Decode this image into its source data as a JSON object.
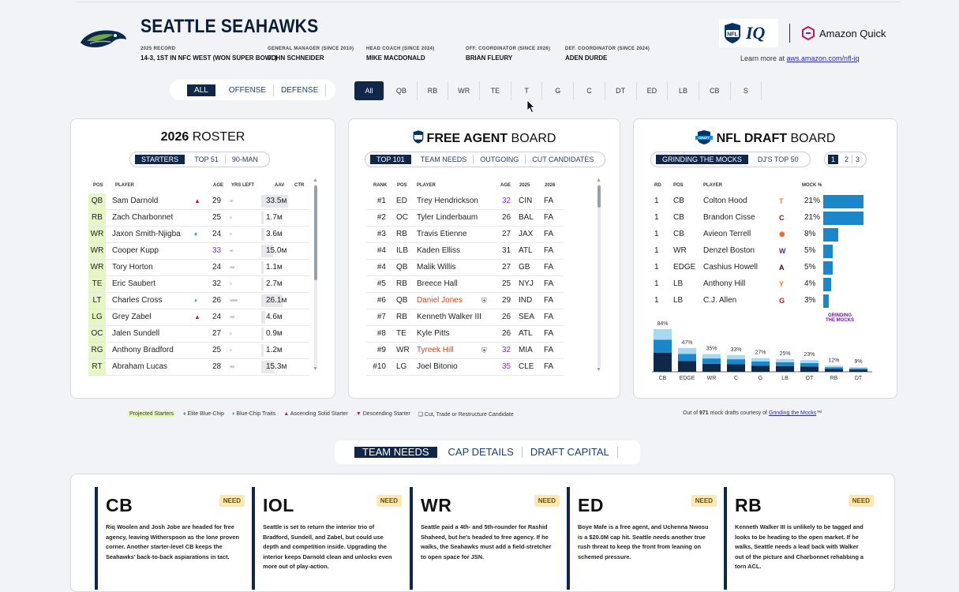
{
  "header": {
    "team_name": "SEATTLE SEAHAWKS",
    "meta": [
      {
        "key": "2025 RECORD",
        "value": "14-3, 1ST IN NFC WEST (WON SUPER BOWL)"
      },
      {
        "key": "GENERAL MANAGER (SINCE 2010)",
        "value": "JOHN SCHNEIDER"
      },
      {
        "key": "HEAD COACH (SINCE 2024)",
        "value": "MIKE MACDONALD"
      },
      {
        "key": "OFF. COORDINATOR (SINCE 2026)",
        "value": "BRIAN FLEURY"
      },
      {
        "key": "DEF. COORDINATOR (SINCE 2024)",
        "value": "ADEN DURDE"
      }
    ],
    "brand_nfl_iq": "IQ",
    "brand_amazon": "Amazon Quick",
    "learn_prefix": "Learn more at ",
    "learn_link": "aws.amazon.com/nfl-iq"
  },
  "unit_filter": [
    "ALL",
    "OFFENSE",
    "DEFENSE"
  ],
  "position_filter": [
    "All",
    "QB",
    "RB",
    "WR",
    "TE",
    "T",
    "G",
    "C",
    "DT",
    "ED",
    "LB",
    "CB",
    "S"
  ],
  "roster": {
    "title_year": "2026",
    "title_word": "ROSTER",
    "tabs": [
      "STARTERS",
      "TOP 51",
      "90-MAN"
    ],
    "columns": [
      "POS",
      "PLAYER",
      "AGE",
      "YRS LEFT",
      "AAV",
      "CTR"
    ],
    "rows": [
      {
        "pos": "QB",
        "player": "Sam Darnold",
        "mark": "▲",
        "mark_color": "#c2185b",
        "age": "29",
        "yrs": "◦◦",
        "aav": "33.5м",
        "aav_pct": 1.0,
        "age_color": "#222"
      },
      {
        "pos": "RB",
        "player": "Zach Charbonnet",
        "mark": "",
        "mark_color": "",
        "age": "25",
        "yrs": "◦",
        "aav": "1.7м",
        "aav_pct": 0.05,
        "age_color": "#222"
      },
      {
        "pos": "WR",
        "player": "Jaxon Smith-Njigba",
        "mark": "♦",
        "mark_color": "#3a8fd8",
        "age": "24",
        "yrs": "◦",
        "aav": "3.6м",
        "aav_pct": 0.11,
        "age_color": "#222"
      },
      {
        "pos": "WR",
        "player": "Cooper Kupp",
        "mark": "",
        "mark_color": "",
        "age": "33",
        "yrs": "◦◦",
        "aav": "15.0м",
        "aav_pct": 0.45,
        "age_color": "#8a2be2"
      },
      {
        "pos": "WR",
        "player": "Tory Horton",
        "mark": "",
        "mark_color": "",
        "age": "24",
        "yrs": "◦◦◦",
        "aav": "1.1м",
        "aav_pct": 0.03,
        "age_color": "#222"
      },
      {
        "pos": "TE",
        "player": "Eric Saubert",
        "mark": "",
        "mark_color": "",
        "age": "32",
        "yrs": "◦",
        "aav": "2.7м",
        "aav_pct": 0.08,
        "age_color": "#222"
      },
      {
        "pos": "LT",
        "player": "Charles Cross",
        "mark": "♦",
        "mark_color": "#5aaaf0",
        "age": "26",
        "yrs": "◦◦◦◦◦",
        "aav": "26.1м",
        "aav_pct": 0.78,
        "age_color": "#222"
      },
      {
        "pos": "LG",
        "player": "Grey Zabel",
        "mark": "▲",
        "mark_color": "#c2185b",
        "age": "24",
        "yrs": "◦◦◦",
        "aav": "4.6м",
        "aav_pct": 0.14,
        "age_color": "#222"
      },
      {
        "pos": "OC",
        "player": "Jalen Sundell",
        "mark": "",
        "mark_color": "",
        "age": "27",
        "yrs": "◦",
        "aav": "0.9м",
        "aav_pct": 0.03,
        "age_color": "#222"
      },
      {
        "pos": "RG",
        "player": "Anthony Bradford",
        "mark": "",
        "mark_color": "",
        "age": "25",
        "yrs": "◦",
        "aav": "1.2м",
        "aav_pct": 0.04,
        "age_color": "#222"
      },
      {
        "pos": "RT",
        "player": "Abraham Lucas",
        "mark": "",
        "mark_color": "",
        "age": "28",
        "yrs": "◦◦◦",
        "aav": "15.3м",
        "aav_pct": 0.46,
        "age_color": "#222"
      }
    ]
  },
  "free_agents": {
    "title_bold": "FREE AGENT",
    "title_word": "BOARD",
    "tabs": [
      "TOP 101",
      "TEAM NEEDS",
      "OUTGOING",
      "CUT CANDIDATES"
    ],
    "columns": [
      "RANK",
      "POS",
      "PLAYER",
      "AGE",
      "2025",
      "2026"
    ],
    "rows": [
      {
        "rank": "#1",
        "pos": "ED",
        "player": "Trey Hendrickson",
        "flag": "",
        "age": "32",
        "t25": "CIN",
        "t26": "FA",
        "player_color": "#222",
        "age_color": "#8a2be2"
      },
      {
        "rank": "#2",
        "pos": "OC",
        "player": "Tyler Linderbaum",
        "flag": "",
        "age": "26",
        "t25": "BAL",
        "t26": "FA",
        "player_color": "#222",
        "age_color": "#222"
      },
      {
        "rank": "#3",
        "pos": "RB",
        "player": "Travis Etienne",
        "flag": "",
        "age": "27",
        "t25": "JAX",
        "t26": "FA",
        "player_color": "#222",
        "age_color": "#222"
      },
      {
        "rank": "#4",
        "pos": "ILB",
        "player": "Kaden Elliss",
        "flag": "",
        "age": "31",
        "t25": "ATL",
        "t26": "FA",
        "player_color": "#222",
        "age_color": "#222"
      },
      {
        "rank": "#4",
        "pos": "QB",
        "player": "Malik Willis",
        "flag": "",
        "age": "27",
        "t25": "GB",
        "t26": "FA",
        "player_color": "#222",
        "age_color": "#222"
      },
      {
        "rank": "#5",
        "pos": "RB",
        "player": "Breece Hall",
        "flag": "",
        "age": "25",
        "t25": "NYJ",
        "t26": "FA",
        "player_color": "#222",
        "age_color": "#222"
      },
      {
        "rank": "#6",
        "pos": "QB",
        "player": "Daniel Jones",
        "flag": "⛨",
        "age": "29",
        "t25": "IND",
        "t26": "FA",
        "player_color": "#d84315",
        "age_color": "#222"
      },
      {
        "rank": "#7",
        "pos": "RB",
        "player": "Kenneth Walker III",
        "flag": "",
        "age": "26",
        "t25": "SEA",
        "t26": "FA",
        "player_color": "#222",
        "age_color": "#222"
      },
      {
        "rank": "#8",
        "pos": "TE",
        "player": "Kyle Pitts",
        "flag": "",
        "age": "26",
        "t25": "ATL",
        "t26": "FA",
        "player_color": "#222",
        "age_color": "#222"
      },
      {
        "rank": "#9",
        "pos": "WR",
        "player": "Tyreek Hill",
        "flag": "⛨",
        "age": "32",
        "t25": "MIA",
        "t26": "FA",
        "player_color": "#d84315",
        "age_color": "#8a2be2"
      },
      {
        "rank": "#10",
        "pos": "LG",
        "player": "Joel Bitonio",
        "flag": "",
        "age": "35",
        "t25": "CLE",
        "t26": "FA",
        "player_color": "#222",
        "age_color": "#8a2be2"
      }
    ]
  },
  "draft": {
    "title_bold": "NFL DRAFT",
    "title_word": "BOARD",
    "tabs": [
      "GRINDING THE MOCKS",
      "DJ'S TOP 50"
    ],
    "pages": [
      "1",
      "2",
      "3"
    ],
    "columns": [
      "RD",
      "POS",
      "PLAYER",
      "MOCK %"
    ],
    "rows": [
      {
        "rd": "1",
        "pos": "CB",
        "player": "Colton Hood",
        "school_icon": "T",
        "school_color": "#f57c00",
        "pct": "21%",
        "value": 21
      },
      {
        "rd": "1",
        "pos": "CB",
        "player": "Brandon Cisse",
        "school_icon": "C",
        "school_color": "#7b1e1e",
        "pct": "21%",
        "value": 21
      },
      {
        "rd": "1",
        "pos": "CB",
        "player": "Avieon Terrell",
        "school_icon": "✺",
        "school_color": "#f26522",
        "pct": "8%",
        "value": 8
      },
      {
        "rd": "1",
        "pos": "WR",
        "player": "Denzel Boston",
        "school_icon": "W",
        "school_color": "#4b2e83",
        "pct": "5%",
        "value": 5
      },
      {
        "rd": "1",
        "pos": "EDGE",
        "player": "Cashius Howell",
        "school_icon": "A",
        "school_color": "#500000",
        "pct": "5%",
        "value": 5
      },
      {
        "rd": "1",
        "pos": "LB",
        "player": "Anthony Hill",
        "school_icon": "Y",
        "school_color": "#f57c00",
        "pct": "4%",
        "value": 4
      },
      {
        "rd": "1",
        "pos": "LB",
        "player": "C.J. Allen",
        "school_icon": "G",
        "school_color": "#b71c1c",
        "pct": "3%",
        "value": 3
      }
    ],
    "logo_text": "GRINDING THE MOCKS",
    "chart_data": {
      "type": "bar",
      "categories": [
        "CB",
        "EDGE",
        "WR",
        "C",
        "G",
        "LB",
        "OT",
        "RB",
        "DT"
      ],
      "values": [
        84,
        47,
        35,
        33,
        27,
        25,
        23,
        12,
        9
      ],
      "labels": [
        "84%",
        "47%",
        "35%",
        "33%",
        "27%",
        "25%",
        "23%",
        "12%",
        "9%"
      ],
      "title": "",
      "xlabel": "",
      "ylabel": "",
      "ylim": [
        0,
        84
      ],
      "stack_colors": [
        "#0f2748",
        "#1b87c9",
        "#a6d9f2"
      ]
    }
  },
  "roster_legend": [
    "Projected Starters",
    "Elite Blue-Chip",
    "Blue-Chip Traits",
    "Ascending Solid Starter",
    "Descending Starter",
    "Cut, Trade or Restructure Candidate"
  ],
  "draft_source": {
    "prefix": "Out of ",
    "count": "971",
    "middle": " mock drafts courtesy of ",
    "link": "Grinding the Mocks",
    "suffix": "™"
  },
  "bottom_tabs": [
    "TEAM NEEDS",
    "CAP DETAILS",
    "DRAFT CAPITAL"
  ],
  "needs": [
    {
      "pos": "CB",
      "tag": "NEED",
      "text": "Riq Woolen and Josh Jobe are headed for free agency, leaving Witherspoon as the lone proven corner. Another starter-level CB keeps the Seahawks' back-to-back aspiarations in tact."
    },
    {
      "pos": "IOL",
      "tag": "NEED",
      "text": "Seattle is set to return the interior trio of Bradford, Sundell, and Zabel, but could use depth and competition inside. Upgrading the interior keeps Darnold clean and unlocks even more out of play-action."
    },
    {
      "pos": "WR",
      "tag": "NEED",
      "text": "Seattle paid a 4th- and 5th-rounder for Rashid Shaheed, but he's headed to free agency. If he walks, the Seahawks must add a field-stretcher to open space for JSN."
    },
    {
      "pos": "ED",
      "tag": "NEED",
      "text": "Boye Mafe is a free agent, and Uchenna Nwosu is a $20.0M cap hit. Seattle needs another true rush threat to keep the front from leaning on schemed pressure."
    },
    {
      "pos": "RB",
      "tag": "NEED",
      "text": "Kenneth Walker III is unlikely to be tagged and looks to be heading to the open market. If he walks, Seattle needs a lead back with Walker out of the picture and Charbonnet rehabbing a torn ACL."
    }
  ]
}
